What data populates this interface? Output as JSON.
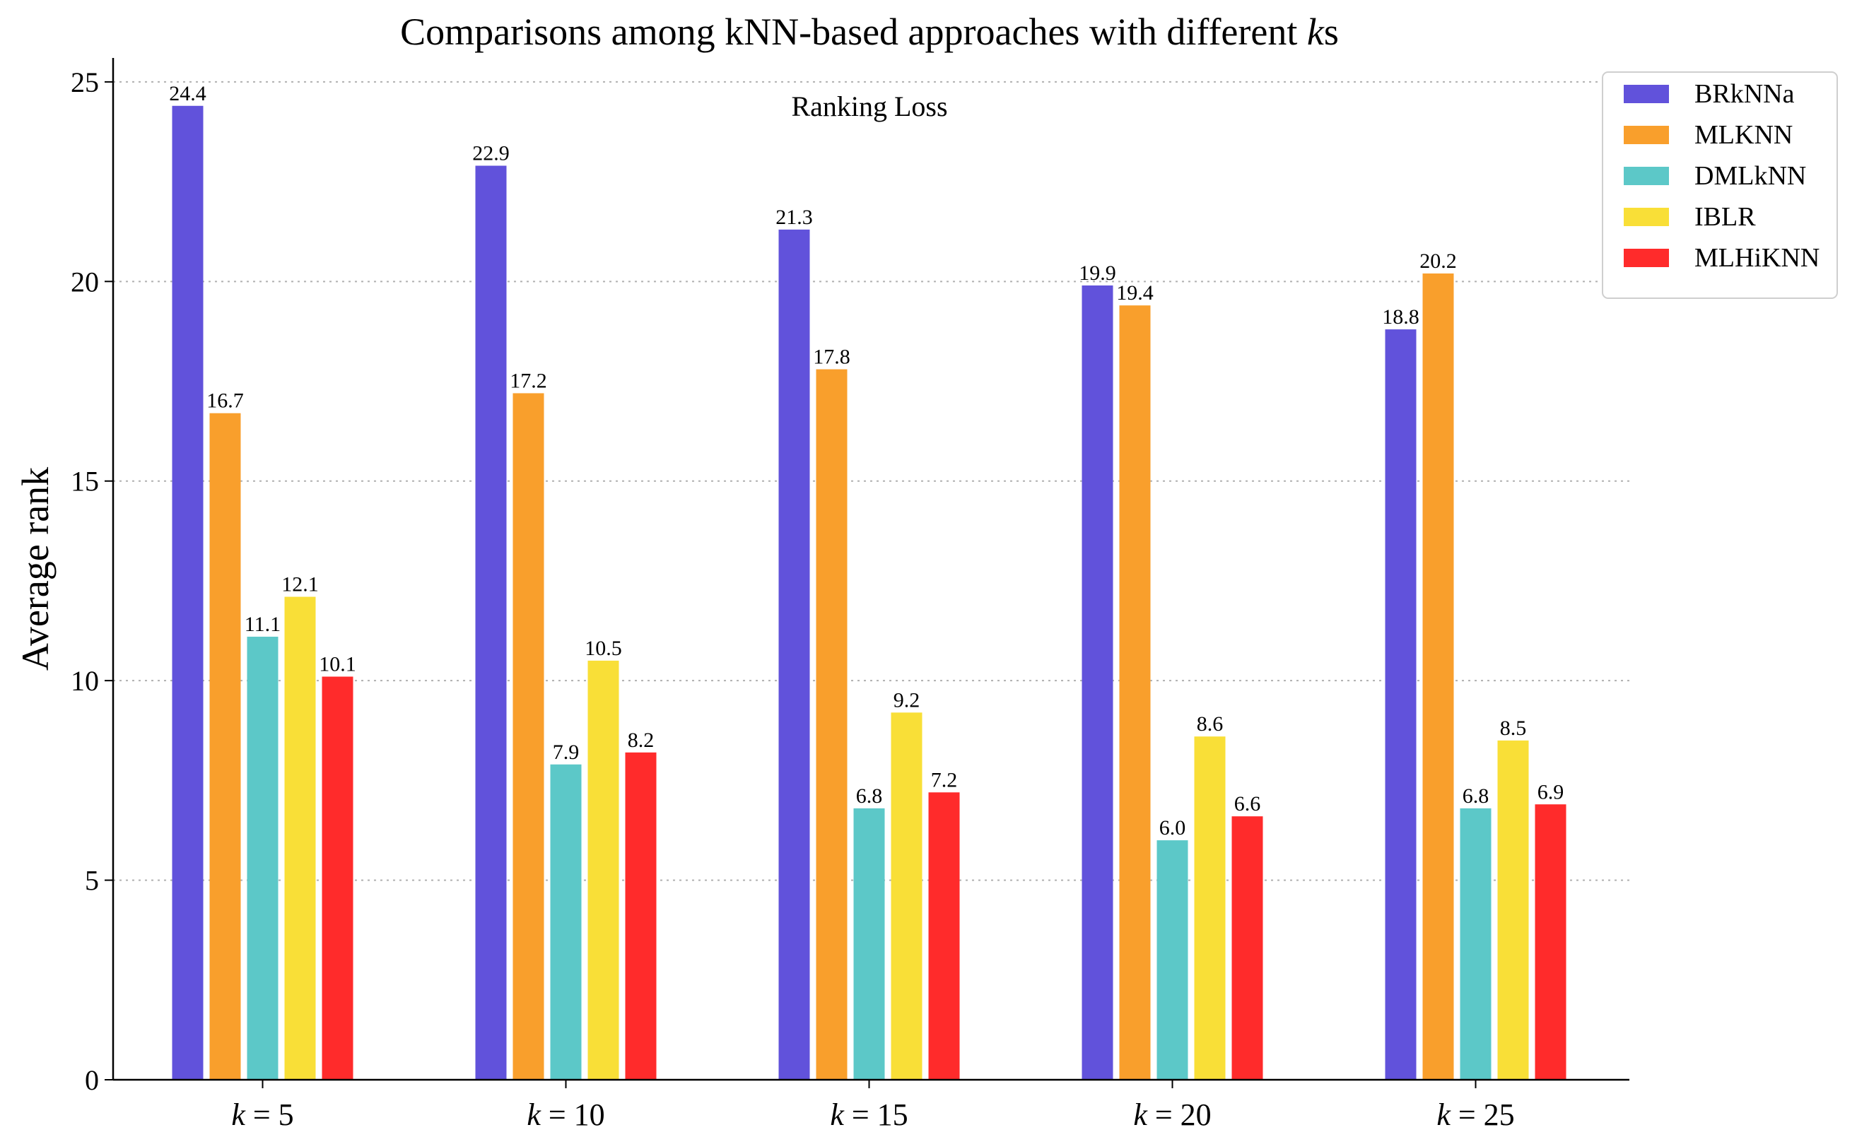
{
  "chart_data": {
    "type": "bar",
    "title_prefix": "Comparisons among kNN-based approaches with different ",
    "title_var": "k",
    "title_suffix": "s",
    "subtitle": "Ranking Loss",
    "xlabel": "",
    "ylabel": "Average rank",
    "ylim": [
      0,
      25.6
    ],
    "yticks": [
      0,
      5,
      10,
      15,
      20,
      25
    ],
    "grid": true,
    "legend_position": "top-right",
    "categories": [
      "k = 5",
      "k = 10",
      "k = 15",
      "k = 20",
      "k = 25"
    ],
    "series": [
      {
        "name": "BRkNNa",
        "color": "#6152db",
        "values": [
          24.4,
          22.9,
          21.3,
          19.9,
          18.8
        ]
      },
      {
        "name": "MLKNN",
        "color": "#f99f2c",
        "values": [
          16.7,
          17.2,
          17.8,
          19.4,
          20.2
        ]
      },
      {
        "name": "DMLkNN",
        "color": "#5cc8c8",
        "values": [
          11.1,
          7.9,
          6.8,
          6.0,
          6.8
        ]
      },
      {
        "name": "IBLR",
        "color": "#f9df37",
        "values": [
          12.1,
          10.5,
          9.2,
          8.6,
          8.5
        ]
      },
      {
        "name": "MLHiKNN",
        "color": "#ff2b2b",
        "values": [
          10.1,
          8.2,
          7.2,
          6.6,
          6.9
        ]
      }
    ]
  }
}
